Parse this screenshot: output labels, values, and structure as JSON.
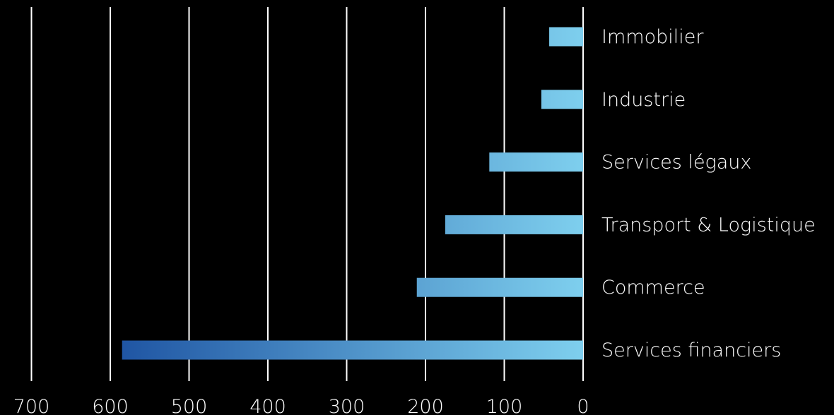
{
  "chart_data": {
    "type": "bar",
    "orientation": "horizontal",
    "x_direction": "reversed",
    "categories": [
      "Immobilier",
      "Industrie",
      "Services légaux",
      "Transport & Logistique",
      "Commerce",
      "Services financiers"
    ],
    "values": [
      43,
      53,
      119,
      175,
      211,
      585
    ],
    "xlim": [
      0,
      700
    ],
    "x_ticks": [
      "700",
      "600",
      "500",
      "400",
      "300",
      "200",
      "100",
      "0"
    ],
    "tick_values": [
      700,
      600,
      500,
      400,
      300,
      200,
      100,
      0
    ],
    "grid": true,
    "legend": "none",
    "title": "",
    "xlabel": "",
    "ylabel": "",
    "colors": {
      "background": "#000000",
      "grid": "#ffffff",
      "text": "#ffffff",
      "bar_gradient_light": "#7ecfee",
      "bar_gradient_dark": "#1f55a3"
    }
  }
}
